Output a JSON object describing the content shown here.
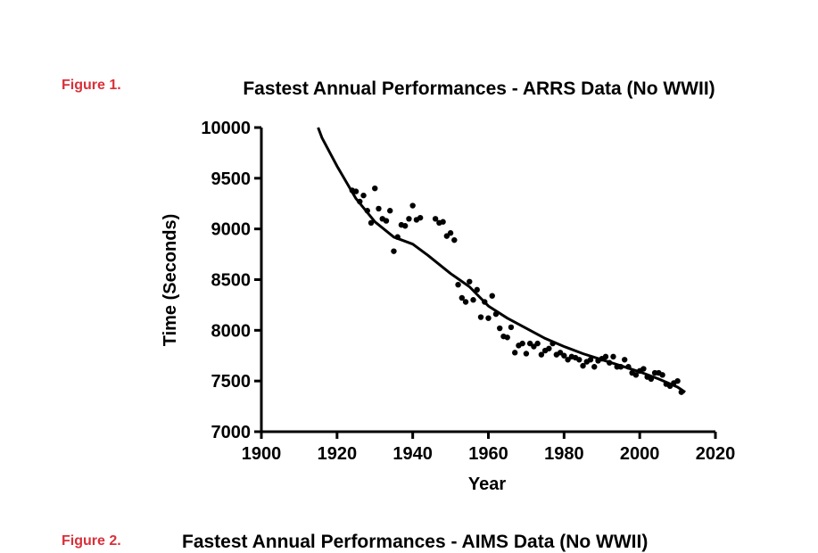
{
  "figure1": {
    "label": "Figure 1.",
    "label_color": "#d9303a"
  },
  "figure2": {
    "label": "Figure 2.",
    "title": "Fastest Annual Performances - AIMS Data (No WWII)"
  },
  "chart_data": {
    "type": "scatter",
    "title": "Fastest Annual Performances - ARRS Data (No WWII)",
    "xlabel": "Year",
    "ylabel": "Time (Seconds)",
    "xlim": [
      1900,
      2020
    ],
    "ylim": [
      7000,
      10000
    ],
    "xticks": [
      1900,
      1920,
      1940,
      1960,
      1980,
      2000,
      2020
    ],
    "yticks": [
      7000,
      7500,
      8000,
      8500,
      9000,
      9500,
      10000
    ],
    "grid": false,
    "series": [
      {
        "kind": "points",
        "color": "#000000",
        "points": [
          [
            1924,
            9380
          ],
          [
            1925,
            9370
          ],
          [
            1926,
            9270
          ],
          [
            1927,
            9330
          ],
          [
            1928,
            9180
          ],
          [
            1929,
            9060
          ],
          [
            1930,
            9400
          ],
          [
            1931,
            9200
          ],
          [
            1932,
            9100
          ],
          [
            1933,
            9080
          ],
          [
            1934,
            9180
          ],
          [
            1935,
            8780
          ],
          [
            1936,
            8920
          ],
          [
            1937,
            9040
          ],
          [
            1938,
            9030
          ],
          [
            1939,
            9100
          ],
          [
            1940,
            9230
          ],
          [
            1941,
            9090
          ],
          [
            1942,
            9110
          ],
          [
            1946,
            9100
          ],
          [
            1947,
            9060
          ],
          [
            1948,
            9070
          ],
          [
            1949,
            8930
          ],
          [
            1950,
            8960
          ],
          [
            1951,
            8890
          ],
          [
            1952,
            8450
          ],
          [
            1953,
            8320
          ],
          [
            1954,
            8280
          ],
          [
            1955,
            8480
          ],
          [
            1956,
            8300
          ],
          [
            1957,
            8400
          ],
          [
            1958,
            8130
          ],
          [
            1959,
            8280
          ],
          [
            1960,
            8120
          ],
          [
            1961,
            8340
          ],
          [
            1962,
            8160
          ],
          [
            1963,
            8020
          ],
          [
            1964,
            7940
          ],
          [
            1965,
            7930
          ],
          [
            1966,
            8030
          ],
          [
            1967,
            7780
          ],
          [
            1968,
            7850
          ],
          [
            1969,
            7870
          ],
          [
            1970,
            7770
          ],
          [
            1971,
            7870
          ],
          [
            1972,
            7840
          ],
          [
            1973,
            7870
          ],
          [
            1974,
            7760
          ],
          [
            1975,
            7800
          ],
          [
            1976,
            7820
          ],
          [
            1977,
            7870
          ],
          [
            1978,
            7760
          ],
          [
            1979,
            7780
          ],
          [
            1980,
            7750
          ],
          [
            1981,
            7710
          ],
          [
            1982,
            7740
          ],
          [
            1983,
            7730
          ],
          [
            1984,
            7710
          ],
          [
            1985,
            7650
          ],
          [
            1986,
            7690
          ],
          [
            1987,
            7710
          ],
          [
            1988,
            7640
          ],
          [
            1989,
            7700
          ],
          [
            1990,
            7720
          ],
          [
            1991,
            7740
          ],
          [
            1992,
            7680
          ],
          [
            1993,
            7740
          ],
          [
            1994,
            7640
          ],
          [
            1995,
            7640
          ],
          [
            1996,
            7710
          ],
          [
            1997,
            7640
          ],
          [
            1998,
            7580
          ],
          [
            1999,
            7560
          ],
          [
            2000,
            7600
          ],
          [
            2001,
            7620
          ],
          [
            2002,
            7540
          ],
          [
            2003,
            7520
          ],
          [
            2004,
            7580
          ],
          [
            2005,
            7580
          ],
          [
            2006,
            7560
          ],
          [
            2007,
            7470
          ],
          [
            2008,
            7450
          ],
          [
            2009,
            7480
          ],
          [
            2010,
            7500
          ],
          [
            2011,
            7390
          ]
        ]
      },
      {
        "kind": "line",
        "color": "#000000",
        "points": [
          [
            1915,
            10000
          ],
          [
            1916,
            9900
          ],
          [
            1920,
            9620
          ],
          [
            1925,
            9300
          ],
          [
            1930,
            9070
          ],
          [
            1935,
            8920
          ],
          [
            1940,
            8850
          ],
          [
            1944,
            8740
          ],
          [
            1950,
            8560
          ],
          [
            1955,
            8430
          ],
          [
            1960,
            8240
          ],
          [
            1965,
            8120
          ],
          [
            1970,
            8020
          ],
          [
            1975,
            7920
          ],
          [
            1980,
            7840
          ],
          [
            1985,
            7770
          ],
          [
            1990,
            7710
          ],
          [
            1995,
            7650
          ],
          [
            2000,
            7590
          ],
          [
            2005,
            7520
          ],
          [
            2010,
            7440
          ],
          [
            2012,
            7390
          ]
        ]
      }
    ]
  }
}
